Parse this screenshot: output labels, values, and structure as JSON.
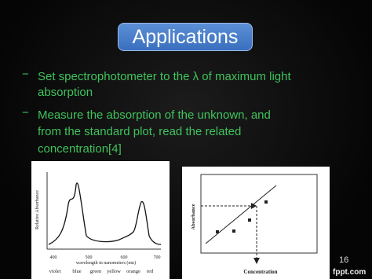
{
  "slide": {
    "title": "Applications",
    "bullets": [
      {
        "marker": "−",
        "lines": [
          "Set spectrophotometer to the λ of maximum light",
          "absorption"
        ]
      },
      {
        "marker": "−",
        "lines": [
          "Measure the absorption of the unknown, and",
          "from the standard plot, read the related",
          "concentration[4]"
        ]
      }
    ],
    "figures": [
      {
        "y_label": "Relative Absorbance",
        "x_label": "wavelength in nanometers (nm)",
        "x_ticks": [
          "400",
          "500",
          "600",
          "700"
        ],
        "color_labels": [
          "violet",
          "blue",
          "green",
          "yellow",
          "orange",
          "red"
        ]
      },
      {
        "y_label": "Absorbance",
        "x_label": "Concentration"
      }
    ],
    "page_number": "16",
    "footer": "fppt.com"
  }
}
